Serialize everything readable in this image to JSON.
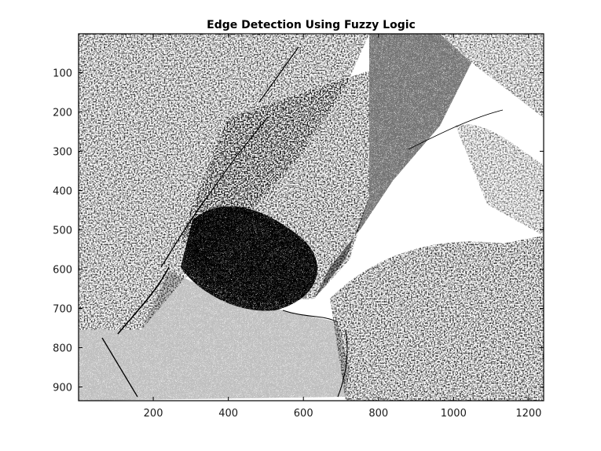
{
  "chart_data": {
    "type": "heatmap",
    "title": "Edge Detection Using Fuzzy Logic",
    "xlabel": "",
    "ylabel": "",
    "xlim": [
      1,
      1240
    ],
    "ylim": [
      1,
      935
    ],
    "y_reversed": true,
    "x_ticks": [
      200,
      400,
      600,
      800,
      1000,
      1200
    ],
    "y_ticks": [
      100,
      200,
      300,
      400,
      500,
      600,
      700,
      800,
      900
    ],
    "colormap": "gray",
    "image_content": "binary edge map of an aerial terrain photograph",
    "colors": {
      "edge": "#000000",
      "background": "#ffffff",
      "axes": "#000000"
    }
  }
}
